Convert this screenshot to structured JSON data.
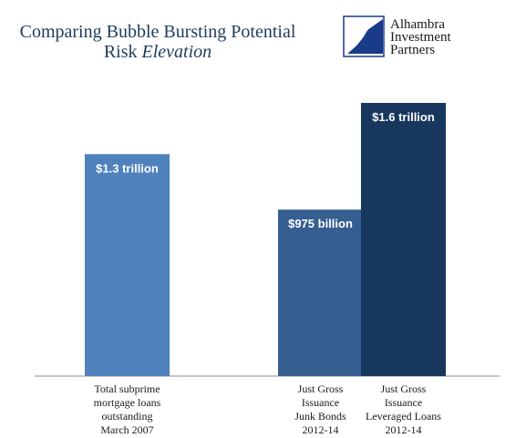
{
  "title": {
    "line1": "Comparing Bubble Bursting Potential",
    "line2_prefix": "Risk ",
    "line2_italic": "Elevation"
  },
  "logo": {
    "lines": [
      "Alhambra",
      "Investment",
      "Partners"
    ],
    "colors": {
      "primary": "#1a3a8a"
    }
  },
  "chart_data": {
    "type": "bar",
    "unit": "billion USD",
    "grid": false,
    "legend": null,
    "categories": [
      [
        "Total subprime",
        "mortgage  loans",
        "outstanding",
        "March 2007"
      ],
      [
        "Just Gross",
        "Issuance",
        "Junk Bonds",
        "2012-14"
      ],
      [
        "Just Gross",
        "Issuance",
        "Leveraged  Loans",
        "2012-14"
      ]
    ],
    "values": [
      1300,
      975,
      1600
    ],
    "data_labels": [
      "$1.3 trillion",
      "$975 billion",
      "$1.6 trillion"
    ],
    "colors": [
      "#4f81bd",
      "#365f91",
      "#17375e"
    ],
    "ylim": [
      0,
      1600
    ]
  }
}
